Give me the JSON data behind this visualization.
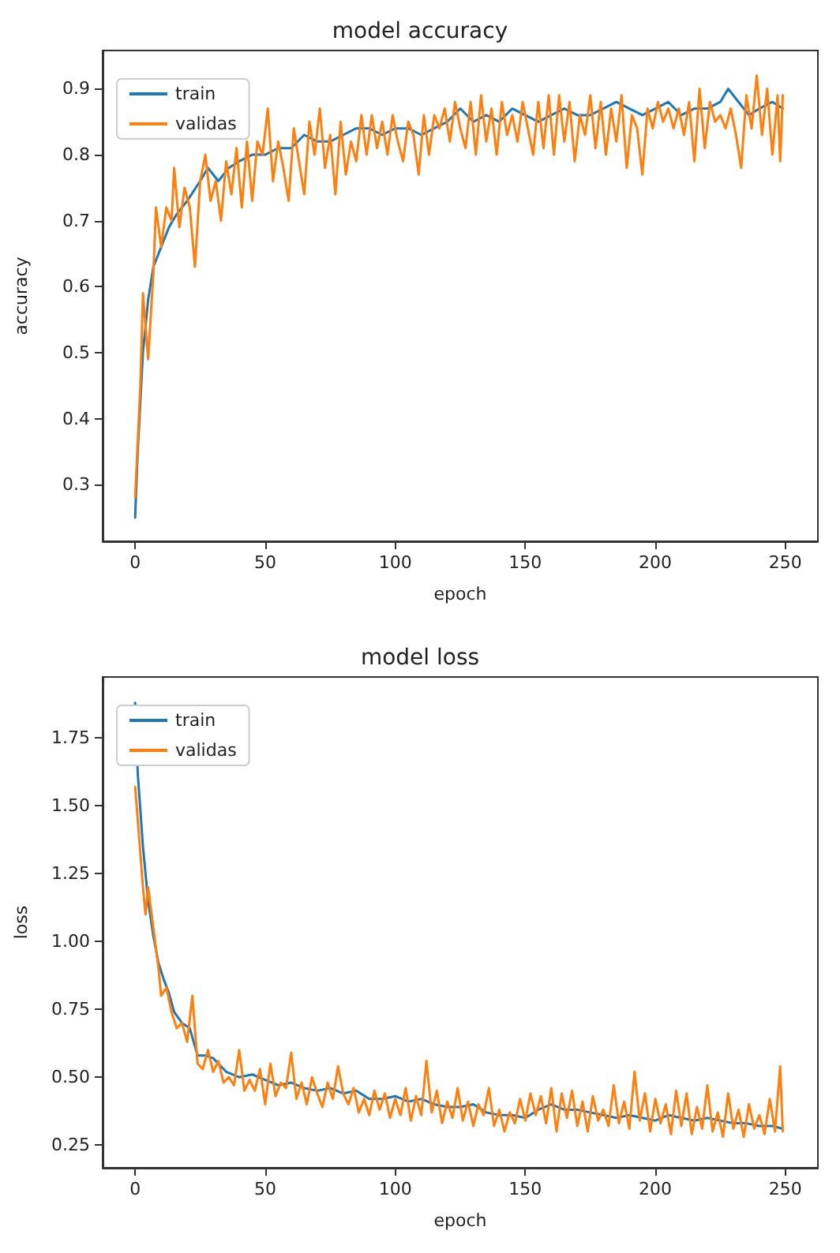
{
  "chart_data": [
    {
      "type": "line",
      "title": "model accuracy",
      "xlabel": "epoch",
      "ylabel": "accuracy",
      "legend": "top left",
      "grid": false,
      "marker": "none",
      "line_style": "solid",
      "xlim": [
        -12.5,
        262.5
      ],
      "xticks": [
        0,
        50,
        100,
        150,
        200,
        250
      ],
      "ylim": [
        0.214,
        0.958
      ],
      "yticks": [
        0.3,
        0.4,
        0.5,
        0.6,
        0.7,
        0.8,
        0.9
      ],
      "series": [
        {
          "name": "train",
          "color": "#1f77b4",
          "x": [
            0,
            1,
            3,
            5,
            7,
            10,
            13,
            16,
            20,
            25,
            28,
            32,
            36,
            40,
            45,
            50,
            55,
            60,
            65,
            70,
            75,
            80,
            85,
            90,
            95,
            100,
            105,
            110,
            115,
            120,
            125,
            130,
            135,
            140,
            145,
            150,
            155,
            160,
            165,
            170,
            175,
            180,
            185,
            190,
            195,
            200,
            205,
            210,
            215,
            220,
            225,
            228,
            232,
            236,
            240,
            245,
            249
          ],
          "values": [
            0.25,
            0.35,
            0.5,
            0.58,
            0.63,
            0.66,
            0.69,
            0.71,
            0.73,
            0.76,
            0.78,
            0.76,
            0.78,
            0.79,
            0.8,
            0.8,
            0.81,
            0.81,
            0.83,
            0.82,
            0.82,
            0.83,
            0.84,
            0.84,
            0.83,
            0.84,
            0.84,
            0.83,
            0.84,
            0.85,
            0.87,
            0.85,
            0.86,
            0.85,
            0.87,
            0.86,
            0.85,
            0.86,
            0.87,
            0.86,
            0.86,
            0.87,
            0.88,
            0.87,
            0.86,
            0.87,
            0.88,
            0.86,
            0.87,
            0.87,
            0.88,
            0.9,
            0.88,
            0.86,
            0.87,
            0.88,
            0.87
          ]
        },
        {
          "name": "validas",
          "color": "#ff7f0e",
          "x": [
            0,
            2,
            3,
            5,
            7,
            8,
            10,
            12,
            14,
            15,
            17,
            19,
            21,
            23,
            25,
            27,
            29,
            31,
            33,
            35,
            37,
            39,
            41,
            43,
            45,
            47,
            49,
            51,
            53,
            55,
            57,
            59,
            61,
            63,
            65,
            67,
            69,
            71,
            73,
            75,
            77,
            79,
            81,
            83,
            85,
            87,
            89,
            91,
            93,
            95,
            97,
            99,
            101,
            103,
            105,
            107,
            109,
            111,
            113,
            115,
            117,
            119,
            121,
            123,
            125,
            127,
            129,
            131,
            133,
            135,
            137,
            139,
            141,
            143,
            145,
            147,
            149,
            151,
            153,
            155,
            157,
            159,
            161,
            163,
            165,
            167,
            169,
            171,
            173,
            175,
            177,
            179,
            181,
            183,
            185,
            187,
            189,
            191,
            193,
            195,
            197,
            199,
            201,
            203,
            205,
            207,
            209,
            211,
            213,
            215,
            217,
            219,
            221,
            223,
            225,
            227,
            229,
            231,
            233,
            235,
            237,
            239,
            241,
            243,
            245,
            247,
            248,
            249
          ],
          "values": [
            0.28,
            0.45,
            0.59,
            0.49,
            0.62,
            0.72,
            0.66,
            0.72,
            0.7,
            0.78,
            0.69,
            0.75,
            0.72,
            0.63,
            0.76,
            0.8,
            0.73,
            0.76,
            0.7,
            0.79,
            0.74,
            0.81,
            0.72,
            0.82,
            0.73,
            0.82,
            0.8,
            0.87,
            0.76,
            0.82,
            0.78,
            0.73,
            0.84,
            0.79,
            0.74,
            0.85,
            0.8,
            0.87,
            0.78,
            0.83,
            0.74,
            0.85,
            0.77,
            0.82,
            0.79,
            0.86,
            0.8,
            0.86,
            0.81,
            0.85,
            0.8,
            0.86,
            0.82,
            0.79,
            0.85,
            0.83,
            0.77,
            0.86,
            0.8,
            0.86,
            0.84,
            0.87,
            0.82,
            0.88,
            0.84,
            0.81,
            0.88,
            0.8,
            0.89,
            0.82,
            0.87,
            0.8,
            0.88,
            0.83,
            0.86,
            0.82,
            0.88,
            0.84,
            0.8,
            0.88,
            0.81,
            0.89,
            0.8,
            0.89,
            0.82,
            0.88,
            0.79,
            0.86,
            0.83,
            0.89,
            0.81,
            0.88,
            0.8,
            0.87,
            0.82,
            0.89,
            0.78,
            0.86,
            0.84,
            0.77,
            0.87,
            0.84,
            0.88,
            0.85,
            0.87,
            0.84,
            0.87,
            0.83,
            0.88,
            0.79,
            0.9,
            0.81,
            0.88,
            0.85,
            0.86,
            0.84,
            0.87,
            0.83,
            0.78,
            0.89,
            0.84,
            0.92,
            0.83,
            0.9,
            0.8,
            0.89,
            0.79,
            0.89
          ]
        }
      ]
    },
    {
      "type": "line",
      "title": "model loss",
      "xlabel": "epoch",
      "ylabel": "loss",
      "legend": "top left",
      "grid": false,
      "marker": "none",
      "line_style": "solid",
      "xlim": [
        -12.5,
        262.5
      ],
      "xticks": [
        0,
        50,
        100,
        150,
        200,
        250
      ],
      "ylim": [
        0.166,
        1.975
      ],
      "yticks": [
        0.25,
        {
          "value": 0.5,
          "label": "0.50"
        },
        0.75,
        {
          "value": 1,
          "label": "1.00"
        },
        1.25,
        {
          "value": 1.5,
          "label": "1.50"
        },
        1.75
      ],
      "series": [
        {
          "name": "train",
          "color": "#1f77b4",
          "x": [
            0,
            1,
            3,
            5,
            7,
            9,
            11,
            13,
            15,
            18,
            21,
            24,
            27,
            30,
            35,
            40,
            45,
            50,
            55,
            60,
            65,
            70,
            75,
            80,
            85,
            90,
            95,
            100,
            105,
            110,
            115,
            120,
            125,
            130,
            135,
            140,
            145,
            150,
            155,
            160,
            165,
            170,
            175,
            180,
            185,
            190,
            195,
            200,
            205,
            210,
            215,
            220,
            225,
            230,
            235,
            240,
            245,
            249
          ],
          "values": [
            1.88,
            1.62,
            1.35,
            1.15,
            1.02,
            0.92,
            0.86,
            0.81,
            0.74,
            0.7,
            0.68,
            0.58,
            0.58,
            0.57,
            0.52,
            0.5,
            0.51,
            0.49,
            0.47,
            0.48,
            0.46,
            0.45,
            0.46,
            0.44,
            0.45,
            0.42,
            0.42,
            0.43,
            0.41,
            0.42,
            0.4,
            0.39,
            0.39,
            0.4,
            0.37,
            0.36,
            0.36,
            0.35,
            0.38,
            0.4,
            0.38,
            0.38,
            0.37,
            0.36,
            0.35,
            0.36,
            0.35,
            0.34,
            0.36,
            0.35,
            0.34,
            0.35,
            0.34,
            0.33,
            0.33,
            0.32,
            0.32,
            0.31
          ]
        },
        {
          "name": "validas",
          "color": "#ff7f0e",
          "x": [
            0,
            1,
            3,
            4,
            5,
            7,
            9,
            10,
            12,
            14,
            16,
            18,
            20,
            22,
            24,
            26,
            28,
            30,
            32,
            34,
            36,
            38,
            40,
            42,
            44,
            46,
            48,
            50,
            52,
            54,
            56,
            58,
            60,
            62,
            64,
            66,
            68,
            70,
            72,
            74,
            76,
            78,
            80,
            82,
            84,
            86,
            88,
            90,
            92,
            94,
            96,
            98,
            100,
            102,
            104,
            106,
            108,
            110,
            112,
            114,
            116,
            118,
            120,
            122,
            124,
            126,
            128,
            130,
            132,
            134,
            136,
            138,
            140,
            142,
            144,
            146,
            148,
            150,
            152,
            154,
            156,
            158,
            160,
            162,
            164,
            166,
            168,
            170,
            172,
            174,
            176,
            178,
            180,
            182,
            184,
            186,
            188,
            190,
            192,
            194,
            196,
            198,
            200,
            202,
            204,
            206,
            208,
            210,
            212,
            214,
            216,
            218,
            220,
            222,
            224,
            226,
            228,
            230,
            232,
            234,
            236,
            238,
            240,
            242,
            244,
            246,
            248,
            249
          ],
          "values": [
            1.57,
            1.45,
            1.2,
            1.1,
            1.2,
            1.05,
            0.9,
            0.8,
            0.83,
            0.74,
            0.68,
            0.7,
            0.63,
            0.8,
            0.55,
            0.53,
            0.6,
            0.52,
            0.56,
            0.48,
            0.5,
            0.47,
            0.6,
            0.45,
            0.49,
            0.45,
            0.53,
            0.4,
            0.55,
            0.43,
            0.48,
            0.46,
            0.59,
            0.42,
            0.48,
            0.4,
            0.5,
            0.44,
            0.39,
            0.48,
            0.42,
            0.54,
            0.44,
            0.4,
            0.46,
            0.37,
            0.42,
            0.36,
            0.45,
            0.38,
            0.44,
            0.35,
            0.42,
            0.36,
            0.46,
            0.34,
            0.43,
            0.36,
            0.56,
            0.37,
            0.45,
            0.33,
            0.41,
            0.35,
            0.46,
            0.34,
            0.41,
            0.32,
            0.4,
            0.36,
            0.46,
            0.32,
            0.38,
            0.3,
            0.37,
            0.33,
            0.42,
            0.34,
            0.44,
            0.36,
            0.43,
            0.33,
            0.46,
            0.3,
            0.44,
            0.35,
            0.45,
            0.32,
            0.41,
            0.3,
            0.43,
            0.34,
            0.38,
            0.32,
            0.47,
            0.33,
            0.41,
            0.31,
            0.52,
            0.34,
            0.44,
            0.3,
            0.42,
            0.33,
            0.4,
            0.29,
            0.45,
            0.32,
            0.44,
            0.29,
            0.39,
            0.31,
            0.47,
            0.3,
            0.37,
            0.28,
            0.44,
            0.31,
            0.38,
            0.28,
            0.4,
            0.31,
            0.36,
            0.29,
            0.42,
            0.3,
            0.54,
            0.3
          ]
        }
      ]
    }
  ]
}
